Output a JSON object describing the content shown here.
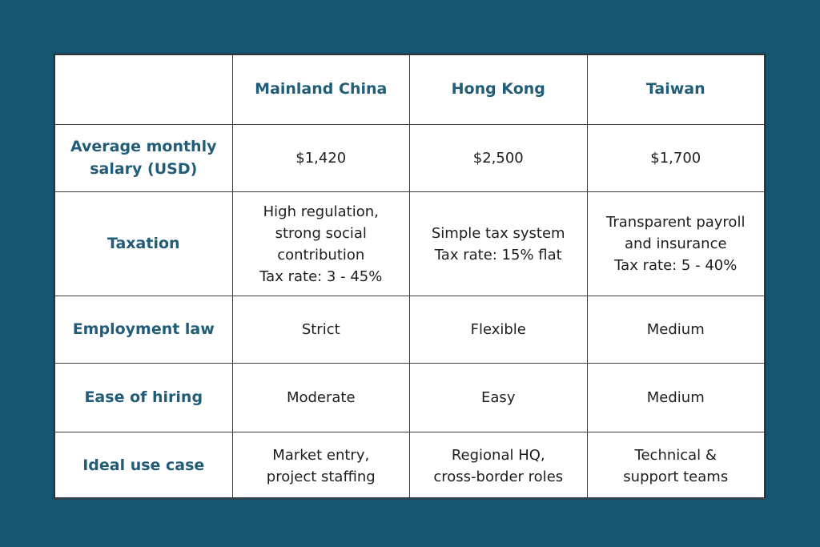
{
  "colors": {
    "page_background": "#175470",
    "table_background": "#ffffff",
    "grid_line": "#3b3b3b",
    "outer_border": "#252525",
    "header_text": "#215c79",
    "body_text": "#1e1e1e"
  },
  "chart_data": {
    "type": "table",
    "title": "",
    "columns": [
      "",
      "Mainland China",
      "Hong Kong",
      "Taiwan"
    ],
    "rows": [
      {
        "label": "Average monthly\nsalary (USD)",
        "values": [
          "$1,420",
          "$2,500",
          "$1,700"
        ]
      },
      {
        "label": "Taxation",
        "values": [
          "High regulation,\nstrong social\ncontribution\nTax rate: 3 - 45%",
          "Simple tax system\nTax rate: 15% flat",
          "Transparent payroll\nand insurance\nTax rate: 5 - 40%"
        ]
      },
      {
        "label": "Employment law",
        "values": [
          "Strict",
          "Flexible",
          "Medium"
        ]
      },
      {
        "label": "Ease of hiring",
        "values": [
          "Moderate",
          "Easy",
          "Medium"
        ]
      },
      {
        "label": "Ideal use case",
        "values": [
          "Market entry,\nproject staffing",
          "Regional HQ,\ncross-border roles",
          "Technical &\nsupport teams"
        ]
      }
    ]
  }
}
